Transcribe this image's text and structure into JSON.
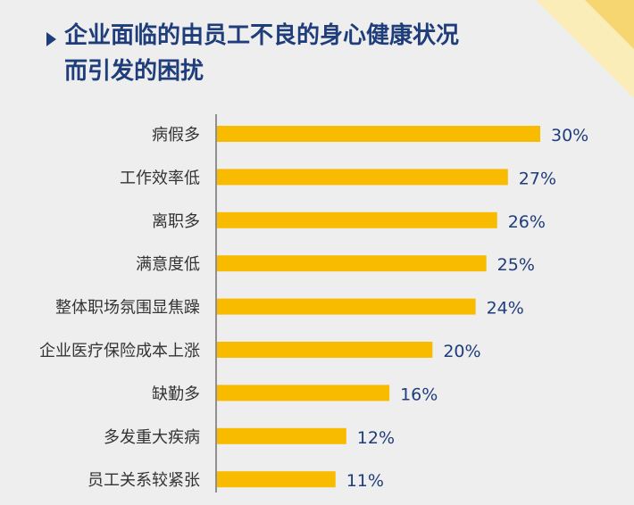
{
  "title_line1": "企业面临的由员工不良的身心健康状况",
  "title_line2": "而引发的困扰",
  "colors": {
    "bar": "#f9bb00",
    "value_text": "#1f3d7a",
    "label_text": "#333333",
    "axis": "#333333",
    "corner_light": "#fbedb8",
    "corner_dark": "#f5d670"
  },
  "chart_data": {
    "type": "bar",
    "orientation": "horizontal",
    "categories": [
      "病假多",
      "工作效率低",
      "离职多",
      "满意度低",
      "整体职场氛围显焦躁",
      "企业医疗保险成本上涨",
      "缺勤多",
      "多发重大疾病",
      "员工关系较紧张"
    ],
    "values": [
      30,
      27,
      26,
      25,
      24,
      20,
      16,
      12,
      11
    ],
    "value_labels": [
      "30%",
      "27%",
      "26%",
      "25%",
      "24%",
      "20%",
      "16%",
      "12%",
      "11%"
    ],
    "xlim": [
      0,
      30
    ],
    "grid": false
  }
}
